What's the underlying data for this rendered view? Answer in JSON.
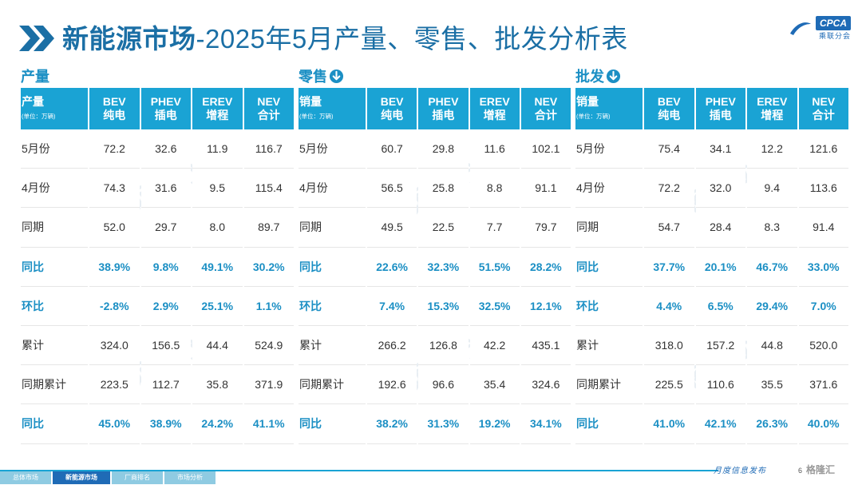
{
  "header": {
    "title_bold": "新能源市场",
    "title_rest": "-2025年5月产量、零售、批发分析表",
    "logo_badge": "CPCA",
    "logo_sub": "乘联分会"
  },
  "sections": [
    {
      "label": "产量",
      "has_arrow": false,
      "header": {
        "first_main": "产量",
        "first_unit": "(单位：万辆)"
      },
      "rows": [
        {
          "label": "5月份",
          "values": [
            "72.2",
            "32.6",
            "11.9",
            "116.7"
          ],
          "highlight": false
        },
        {
          "label": "4月份",
          "values": [
            "74.3",
            "31.6",
            "9.5",
            "115.4"
          ],
          "highlight": false
        },
        {
          "label": "同期",
          "values": [
            "52.0",
            "29.7",
            "8.0",
            "89.7"
          ],
          "highlight": false
        },
        {
          "label": "同比",
          "values": [
            "38.9%",
            "9.8%",
            "49.1%",
            "30.2%"
          ],
          "highlight": true
        },
        {
          "label": "环比",
          "values": [
            "-2.8%",
            "2.9%",
            "25.1%",
            "1.1%"
          ],
          "highlight": true
        },
        {
          "label": "累计",
          "values": [
            "324.0",
            "156.5",
            "44.4",
            "524.9"
          ],
          "highlight": false
        },
        {
          "label": "同期累计",
          "values": [
            "223.5",
            "112.7",
            "35.8",
            "371.9"
          ],
          "highlight": false
        },
        {
          "label": "同比",
          "values": [
            "45.0%",
            "38.9%",
            "24.2%",
            "41.1%"
          ],
          "highlight": true
        }
      ]
    },
    {
      "label": "零售",
      "has_arrow": true,
      "header": {
        "first_main": "销量",
        "first_unit": "(单位：万辆)"
      },
      "rows": [
        {
          "label": "5月份",
          "values": [
            "60.7",
            "29.8",
            "11.6",
            "102.1"
          ],
          "highlight": false
        },
        {
          "label": "4月份",
          "values": [
            "56.5",
            "25.8",
            "8.8",
            "91.1"
          ],
          "highlight": false
        },
        {
          "label": "同期",
          "values": [
            "49.5",
            "22.5",
            "7.7",
            "79.7"
          ],
          "highlight": false
        },
        {
          "label": "同比",
          "values": [
            "22.6%",
            "32.3%",
            "51.5%",
            "28.2%"
          ],
          "highlight": true
        },
        {
          "label": "环比",
          "values": [
            "7.4%",
            "15.3%",
            "32.5%",
            "12.1%"
          ],
          "highlight": true
        },
        {
          "label": "累计",
          "values": [
            "266.2",
            "126.8",
            "42.2",
            "435.1"
          ],
          "highlight": false
        },
        {
          "label": "同期累计",
          "values": [
            "192.6",
            "96.6",
            "35.4",
            "324.6"
          ],
          "highlight": false
        },
        {
          "label": "同比",
          "values": [
            "38.2%",
            "31.3%",
            "19.2%",
            "34.1%"
          ],
          "highlight": true
        }
      ]
    },
    {
      "label": "批发",
      "has_arrow": true,
      "header": {
        "first_main": "销量",
        "first_unit": "(单位：万辆)"
      },
      "rows": [
        {
          "label": "5月份",
          "values": [
            "75.4",
            "34.1",
            "12.2",
            "121.6"
          ],
          "highlight": false
        },
        {
          "label": "4月份",
          "values": [
            "72.2",
            "32.0",
            "9.4",
            "113.6"
          ],
          "highlight": false
        },
        {
          "label": "同期",
          "values": [
            "54.7",
            "28.4",
            "8.3",
            "91.4"
          ],
          "highlight": false
        },
        {
          "label": "同比",
          "values": [
            "37.7%",
            "20.1%",
            "46.7%",
            "33.0%"
          ],
          "highlight": true
        },
        {
          "label": "环比",
          "values": [
            "4.4%",
            "6.5%",
            "29.4%",
            "7.0%"
          ],
          "highlight": true
        },
        {
          "label": "累计",
          "values": [
            "318.0",
            "157.2",
            "44.8",
            "520.0"
          ],
          "highlight": false
        },
        {
          "label": "同期累计",
          "values": [
            "225.5",
            "110.6",
            "35.5",
            "371.6"
          ],
          "highlight": false
        },
        {
          "label": "同比",
          "values": [
            "41.0%",
            "42.1%",
            "26.3%",
            "40.0%"
          ],
          "highlight": true
        }
      ]
    }
  ],
  "columns": [
    {
      "top": "BEV",
      "bottom": "纯电"
    },
    {
      "top": "PHEV",
      "bottom": "插电"
    },
    {
      "top": "EREV",
      "bottom": "增程"
    },
    {
      "top": "NEV",
      "bottom": "合计"
    }
  ],
  "footer": {
    "tabs": [
      {
        "label": "总体市场",
        "active": false
      },
      {
        "label": "新能源市场",
        "active": true
      },
      {
        "label": "厂商排名",
        "active": false
      },
      {
        "label": "市场分析",
        "active": false
      }
    ],
    "tagline": "月度信息发布",
    "page": "6",
    "brand": "格隆汇"
  },
  "colors": {
    "title": "#1b6fa5",
    "header_bg": "#1aa3d4",
    "highlight_text": "#1b8fc4",
    "footer_active": "#1f6bb6"
  },
  "watermark": "乘联分会"
}
